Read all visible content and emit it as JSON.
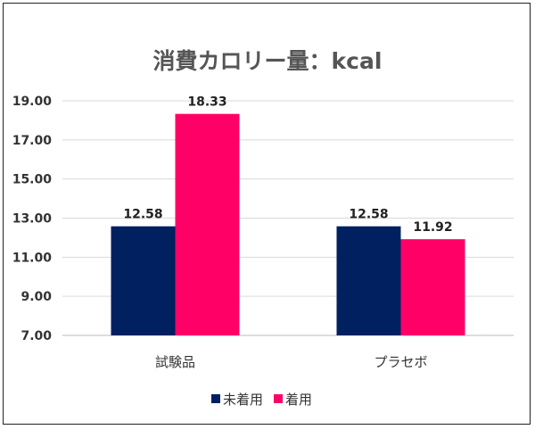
{
  "chart_data": {
    "type": "bar",
    "title": "消費カロリー量：kcal",
    "categories": [
      "試験品",
      "プラセボ"
    ],
    "series": [
      {
        "name": "未着用",
        "values": [
          12.58,
          12.58
        ],
        "color": "#002060"
      },
      {
        "name": "着用",
        "values": [
          18.33,
          11.92
        ],
        "color": "#FF0066"
      }
    ],
    "ylim": [
      7,
      19
    ],
    "yticks": [
      "7.00",
      "9.00",
      "11.00",
      "13.00",
      "15.00",
      "17.00",
      "19.00"
    ],
    "xlabel": "",
    "ylabel": "",
    "grid": true,
    "legend": "bottom"
  }
}
